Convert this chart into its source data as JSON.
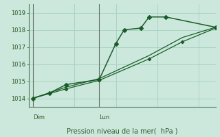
{
  "xlabel": "Pression niveau de la mer(  hPa )",
  "ylim": [
    1013.5,
    1019.5
  ],
  "yticks": [
    1014,
    1015,
    1016,
    1017,
    1018,
    1019
  ],
  "bg_color": "#cce8dc",
  "grid_color": "#aad4c4",
  "line_color": "#1a5c28",
  "axis_color": "#2a5a2a",
  "tick_label_color": "#2a5a2a",
  "day_label_color": "#2a5a2a",
  "x_day_labels": [
    {
      "label": "Dim",
      "x": 0
    },
    {
      "label": "Lun",
      "x": 8
    }
  ],
  "x_vlines": [
    0,
    8
  ],
  "series1_x": [
    0,
    2,
    4,
    8,
    10,
    11,
    13,
    14,
    16,
    22
  ],
  "series1_y": [
    1014.0,
    1014.3,
    1014.8,
    1015.1,
    1017.2,
    1018.0,
    1018.1,
    1018.75,
    1018.75,
    1018.15
  ],
  "series2_x": [
    0,
    4,
    8,
    14,
    18,
    22
  ],
  "series2_y": [
    1014.0,
    1014.55,
    1015.05,
    1016.3,
    1017.3,
    1018.1
  ],
  "series3_x": [
    0,
    4,
    8,
    14,
    18,
    22
  ],
  "series3_y": [
    1014.0,
    1014.65,
    1015.15,
    1016.5,
    1017.55,
    1018.15
  ],
  "xmin": -0.5,
  "xmax": 22
}
